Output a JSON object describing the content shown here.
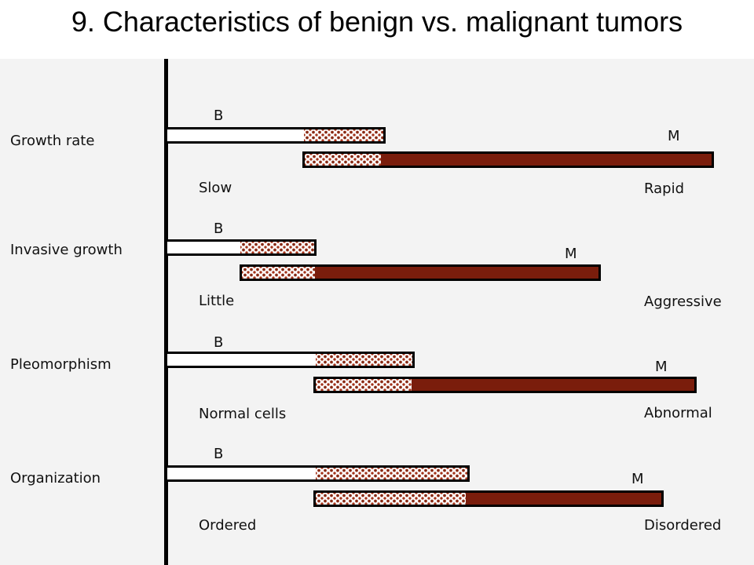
{
  "title": "9. Characteristics of benign vs. malignant tumors",
  "colors": {
    "malignant": "#7a1d0c",
    "dots": "#8a2a14",
    "panel": "#f3f3f3"
  },
  "rows": [
    {
      "label": "Growth rate",
      "benign_tag": "B",
      "malignant_tag": "M",
      "low": "Slow",
      "high": "Rapid"
    },
    {
      "label": "Invasive growth",
      "benign_tag": "B",
      "malignant_tag": "M",
      "low": "Little",
      "high": "Aggressive"
    },
    {
      "label": "Pleomorphism",
      "benign_tag": "B",
      "malignant_tag": "M",
      "low": "Normal cells",
      "high": "Abnormal"
    },
    {
      "label": "Organization",
      "benign_tag": "B",
      "malignant_tag": "M",
      "low": "Ordered",
      "high": "Disordered"
    }
  ]
}
